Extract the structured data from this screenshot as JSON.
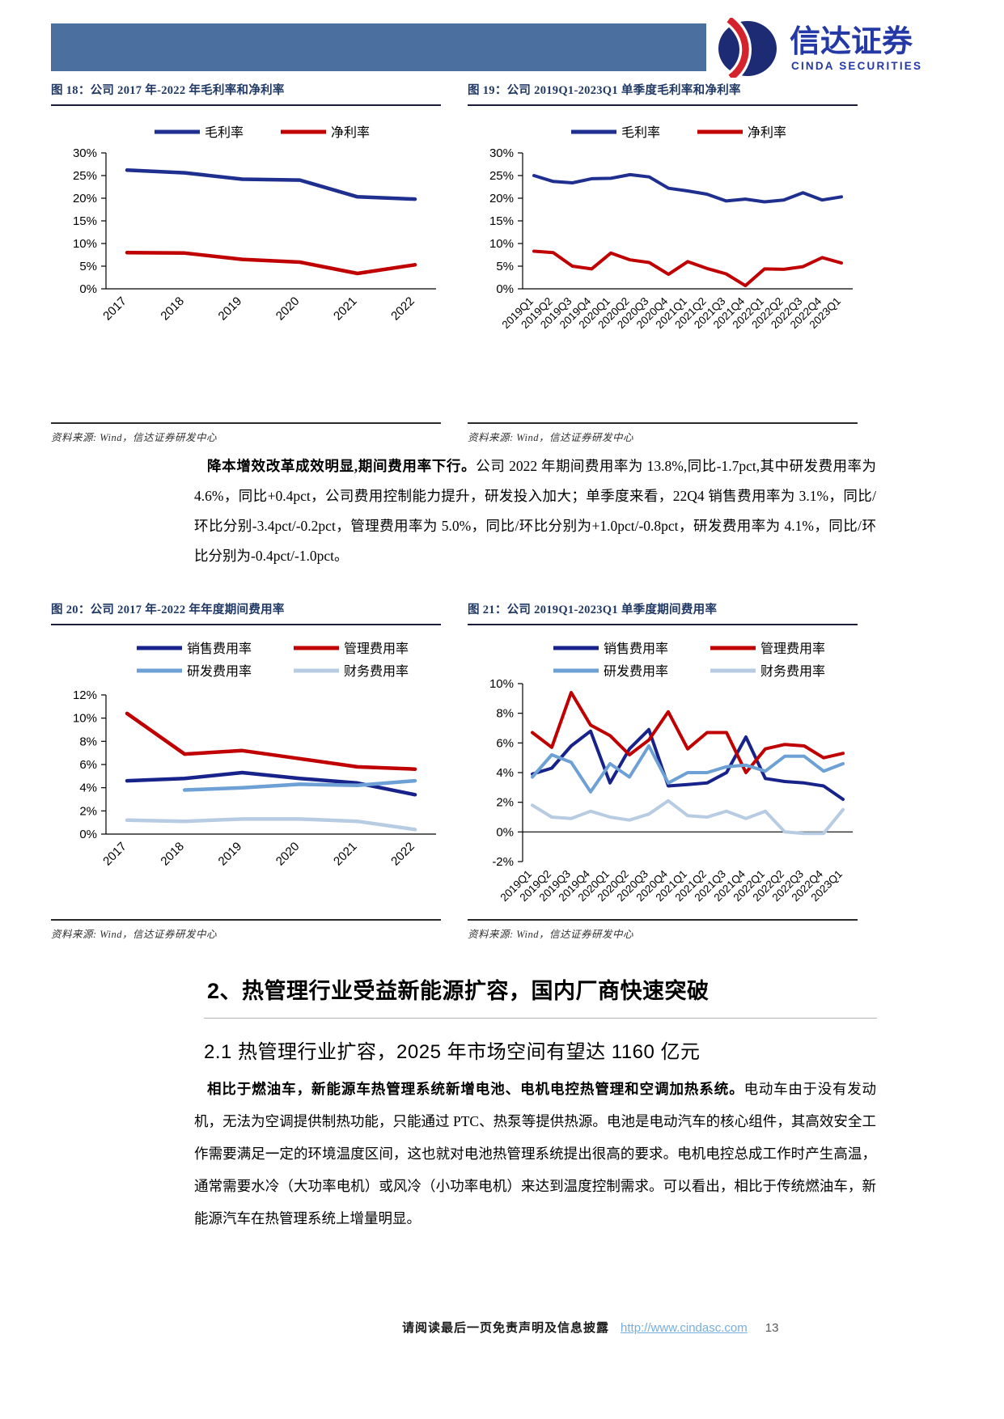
{
  "header": {
    "bar_color": "#4b6f9f",
    "logo": {
      "cn": "信达证券",
      "en": "CINDA SECURITIES",
      "blue": "#2438a6",
      "red": "#d5232e",
      "navy": "#1d2a74"
    }
  },
  "figures": [
    {
      "id": "fig18",
      "title": "图 18：公司 2017 年-2022 年毛利率和净利率",
      "source": "资料来源: Wind，信达证券研发中心",
      "chart_data": {
        "type": "line",
        "categories": [
          "2017",
          "2018",
          "2019",
          "2020",
          "2021",
          "2022"
        ],
        "ylim": [
          0,
          30
        ],
        "ytick": 5,
        "unit": "%",
        "grid": false,
        "legend_position": "top",
        "series": [
          {
            "name": "毛利率",
            "color": "#1e2f8f",
            "values": [
              26.2,
              25.6,
              24.2,
              24.0,
              20.3,
              19.8
            ]
          },
          {
            "name": "净利率",
            "color": "#c00000",
            "values": [
              8.0,
              7.9,
              6.5,
              5.9,
              3.4,
              5.3
            ]
          }
        ]
      }
    },
    {
      "id": "fig19",
      "title": "图 19：公司 2019Q1-2023Q1 单季度毛利率和净利率",
      "source": "资料来源: Wind，信达证券研发中心",
      "chart_data": {
        "type": "line",
        "categories": [
          "2019Q1",
          "2019Q2",
          "2019Q3",
          "2019Q4",
          "2020Q1",
          "2020Q2",
          "2020Q3",
          "2020Q4",
          "2021Q1",
          "2021Q2",
          "2021Q3",
          "2021Q4",
          "2022Q1",
          "2022Q2",
          "2022Q3",
          "2022Q4",
          "2023Q1"
        ],
        "ylim": [
          0,
          30
        ],
        "ytick": 5,
        "unit": "%",
        "grid": false,
        "legend_position": "top",
        "series": [
          {
            "name": "毛利率",
            "color": "#1e2f8f",
            "values": [
              25.0,
              23.7,
              23.4,
              24.3,
              24.4,
              25.2,
              24.7,
              22.2,
              21.6,
              20.9,
              19.4,
              19.8,
              19.2,
              19.6,
              21.2,
              19.6,
              20.3
            ]
          },
          {
            "name": "净利率",
            "color": "#c00000",
            "values": [
              8.3,
              8.0,
              5.0,
              4.4,
              7.9,
              6.4,
              5.8,
              3.2,
              6.0,
              4.5,
              3.3,
              0.7,
              4.4,
              4.3,
              4.9,
              6.9,
              5.7
            ]
          }
        ]
      }
    },
    {
      "id": "fig20",
      "title": "图 20：公司 2017 年-2022 年年度期间费用率",
      "source": "资料来源: Wind，信达证券研发中心",
      "chart_data": {
        "type": "line",
        "categories": [
          "2017",
          "2018",
          "2019",
          "2020",
          "2021",
          "2022"
        ],
        "ylim": [
          0,
          12
        ],
        "ytick": 2,
        "unit": "%",
        "grid": false,
        "legend_position": "top",
        "series": [
          {
            "name": "销售费用率",
            "color": "#17228a",
            "values": [
              4.6,
              4.8,
              5.3,
              4.8,
              4.4,
              3.4
            ]
          },
          {
            "name": "管理费用率",
            "color": "#c00000",
            "values": [
              10.4,
              6.9,
              7.2,
              6.5,
              5.8,
              5.6
            ]
          },
          {
            "name": "研发费用率",
            "color": "#6da0d4",
            "values": [
              null,
              3.8,
              4.0,
              4.3,
              4.2,
              4.6
            ]
          },
          {
            "name": "财务费用率",
            "color": "#b7cce2",
            "values": [
              1.2,
              1.1,
              1.3,
              1.3,
              1.1,
              0.4
            ]
          }
        ]
      }
    },
    {
      "id": "fig21",
      "title": "图 21：公司 2019Q1-2023Q1 单季度期间费用率",
      "source": "资料来源: Wind，信达证券研发中心",
      "chart_data": {
        "type": "line",
        "categories": [
          "2019Q1",
          "2019Q2",
          "2019Q3",
          "2019Q4",
          "2020Q1",
          "2020Q2",
          "2020Q3",
          "2020Q4",
          "2021Q1",
          "2021Q2",
          "2021Q3",
          "2021Q4",
          "2022Q1",
          "2022Q2",
          "2022Q3",
          "2022Q4",
          "2023Q1"
        ],
        "ylim": [
          -2,
          10
        ],
        "ytick": 2,
        "unit": "%",
        "grid": false,
        "legend_position": "top",
        "series": [
          {
            "name": "销售费用率",
            "color": "#17228a",
            "values": [
              3.9,
              4.3,
              5.8,
              6.8,
              3.3,
              5.6,
              6.9,
              3.1,
              3.2,
              3.3,
              4.0,
              6.4,
              3.6,
              3.4,
              3.3,
              3.1,
              2.2
            ]
          },
          {
            "name": "管理费用率",
            "color": "#c00000",
            "values": [
              6.7,
              5.7,
              9.4,
              7.2,
              6.5,
              5.2,
              6.2,
              8.1,
              5.6,
              6.7,
              6.7,
              4.0,
              5.6,
              5.9,
              5.8,
              5.0,
              5.3
            ]
          },
          {
            "name": "研发费用率",
            "color": "#6da0d4",
            "values": [
              3.7,
              5.2,
              4.7,
              2.7,
              4.6,
              3.7,
              5.8,
              3.3,
              4.0,
              4.0,
              4.4,
              4.5,
              4.1,
              5.1,
              5.1,
              4.1,
              4.6
            ]
          },
          {
            "name": "财务费用率",
            "color": "#b7cce2",
            "values": [
              1.8,
              1.0,
              0.9,
              1.4,
              1.0,
              0.8,
              1.2,
              2.1,
              1.1,
              1.0,
              1.4,
              0.9,
              1.4,
              0.0,
              -0.1,
              -0.1,
              1.5
            ]
          }
        ]
      }
    }
  ],
  "paragraphs": {
    "p1_bold": "降本增效改革成效明显,期间费用率下行。",
    "p1_rest": "公司 2022 年期间费用率为 13.8%,同比-1.7pct,其中研发费用率为 4.6%，同比+0.4pct，公司费用控制能力提升，研发投入加大；单季度来看，22Q4 销售费用率为 3.1%，同比/环比分别-3.4pct/-0.2pct，管理费用率为 5.0%，同比/环比分别为+1.0pct/-0.8pct，研发费用率为 4.1%，同比/环比分别为-0.4pct/-1.0pct。",
    "p2_bold": "相比于燃油车，新能源车热管理系统新增电池、电机电控热管理和空调加热系统。",
    "p2_rest": "电动车由于没有发动机，无法为空调提供制热功能，只能通过 PTC、热泵等提供热源。电池是电动汽车的核心组件，其高效安全工作需要满足一定的环境温度区间，这也就对电池热管理系统提出很高的要求。电机电控总成工作时产生高温，通常需要水冷（大功率电机）或风冷（小功率电机）来达到温度控制需求。可以看出，相比于传统燃油车，新能源汽车在热管理系统上增量明显。"
  },
  "sections": {
    "h2": "2、热管理行业受益新能源扩容，国内厂商快速突破",
    "h3": "2.1 热管理行业扩容，2025 年市场空间有望达 1160 亿元"
  },
  "footer": {
    "disclaimer": "请阅读最后一页免责声明及信息披露",
    "url": "http://www.cindasc.com",
    "page_number": "13"
  }
}
